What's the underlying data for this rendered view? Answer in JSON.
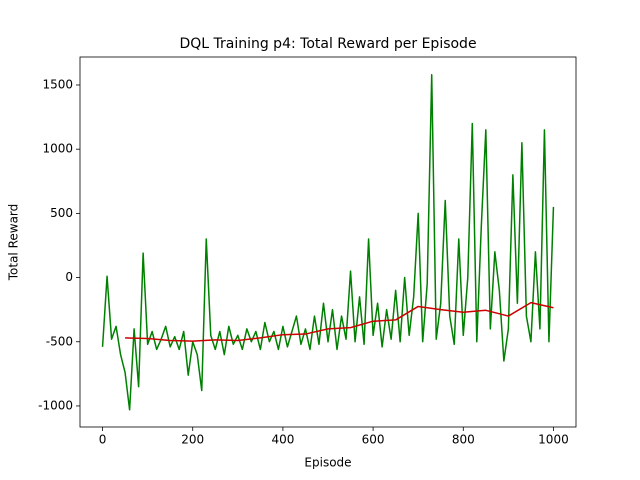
{
  "chart_data": {
    "type": "line",
    "title": "DQL Training p4: Total Reward per Episode",
    "x_label": "Episode",
    "y_label": "Total Reward",
    "xlim": [
      -50,
      1050
    ],
    "ylim": [
      -1164,
      1718
    ],
    "xticks": [
      0,
      200,
      400,
      600,
      800,
      1000
    ],
    "yticks": [
      -1000,
      -500,
      0,
      500,
      1000,
      1500
    ],
    "grid": false,
    "series": [
      {
        "color": "#008000",
        "x": [
          0,
          10,
          20,
          30,
          40,
          50,
          60,
          70,
          80,
          90,
          100,
          110,
          120,
          130,
          140,
          150,
          160,
          170,
          180,
          190,
          200,
          210,
          220,
          230,
          240,
          250,
          260,
          270,
          280,
          290,
          300,
          310,
          320,
          330,
          340,
          350,
          360,
          370,
          380,
          390,
          400,
          410,
          420,
          430,
          440,
          450,
          460,
          470,
          480,
          490,
          500,
          510,
          520,
          530,
          540,
          550,
          560,
          570,
          580,
          590,
          600,
          610,
          620,
          630,
          640,
          650,
          660,
          670,
          680,
          690,
          700,
          710,
          720,
          730,
          740,
          750,
          760,
          770,
          780,
          790,
          800,
          810,
          820,
          830,
          840,
          850,
          860,
          870,
          880,
          890,
          900,
          910,
          920,
          930,
          940,
          950,
          960,
          970,
          980,
          990,
          1000
        ],
        "values": [
          -540,
          10,
          -480,
          -380,
          -600,
          -740,
          -1030,
          -400,
          -850,
          190,
          -520,
          -420,
          -560,
          -480,
          -380,
          -540,
          -460,
          -560,
          -420,
          -760,
          -500,
          -600,
          -880,
          300,
          -450,
          -560,
          -420,
          -600,
          -380,
          -520,
          -450,
          -560,
          -400,
          -500,
          -420,
          -560,
          -350,
          -500,
          -420,
          -560,
          -380,
          -540,
          -420,
          -300,
          -520,
          -400,
          -560,
          -300,
          -520,
          -200,
          -500,
          -250,
          -560,
          -300,
          -480,
          50,
          -500,
          -150,
          -520,
          300,
          -450,
          -200,
          -540,
          -250,
          -480,
          -100,
          -500,
          0,
          -450,
          -150,
          500,
          -500,
          -50,
          1580,
          -480,
          -200,
          600,
          -300,
          -520,
          300,
          -450,
          0,
          1200,
          -500,
          400,
          1150,
          -400,
          200,
          -100,
          -650,
          -400,
          800,
          -200,
          1050,
          -300,
          -500,
          200,
          -400,
          1150,
          -500,
          550
        ]
      },
      {
        "color": "#cc0000",
        "x": [
          50,
          100,
          150,
          200,
          250,
          300,
          350,
          400,
          450,
          500,
          550,
          600,
          650,
          700,
          750,
          800,
          850,
          900,
          950,
          1000
        ],
        "values": [
          -470,
          -475,
          -490,
          -495,
          -485,
          -490,
          -470,
          -445,
          -440,
          -400,
          -390,
          -340,
          -330,
          -225,
          -250,
          -270,
          -255,
          -300,
          -195,
          -235
        ]
      }
    ]
  }
}
